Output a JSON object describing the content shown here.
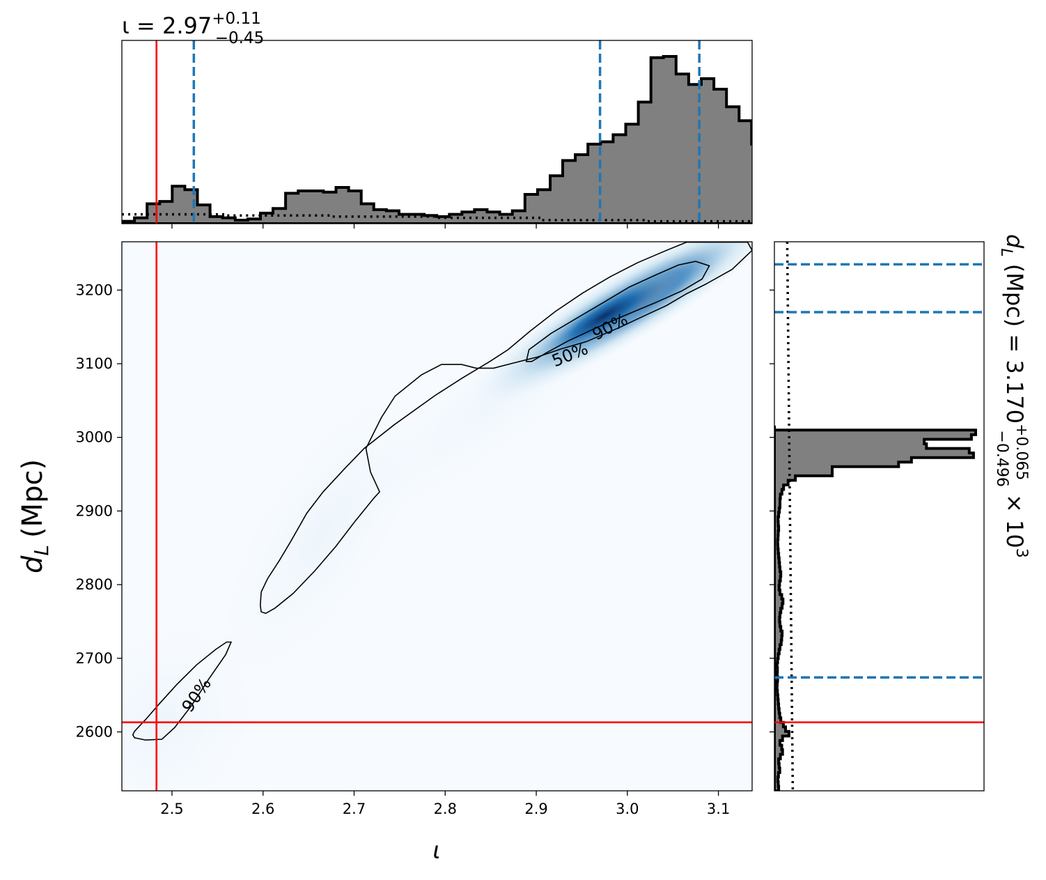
{
  "title": {
    "prefix": "ι = 2.97",
    "sup": "+0.11",
    "sub": "−0.45"
  },
  "side_label": {
    "prefix": "d",
    "sub_L": "L",
    "mid": " (Mpc) = 3.170",
    "sup": "+0.065",
    "sub": "−0.496",
    "suffix": " × 10",
    "exp": "3"
  },
  "chart_data": {
    "type": "heatmap",
    "xlabel": "ι",
    "ylabel_main": "d",
    "ylabel_sub": "L",
    "ylabel_unit": "(Mpc)",
    "xlim": [
      2.445,
      3.137
    ],
    "ylim": [
      2520,
      2265
    ],
    "xticks": [
      "2.5",
      "2.6",
      "2.7",
      "2.8",
      "2.9",
      "3.0",
      "3.1"
    ],
    "xtick_values": [
      2.5,
      2.6,
      2.7,
      2.8,
      2.9,
      3.0,
      3.1
    ],
    "yticks": [
      "2600",
      "2700",
      "2800",
      "2900",
      "3000",
      "3100",
      "3200"
    ],
    "ytick_values": [
      2600,
      2700,
      2800,
      2900,
      3000,
      3100,
      3200
    ],
    "injection": {
      "iota": 2.483,
      "dL": 2613
    },
    "colors": {
      "injection": "#ff0000",
      "quantile": "#1f77b4",
      "hist": "#808080",
      "contour": "#000000",
      "cmap_low": "#f7fbff",
      "cmap_high": "#08306b"
    },
    "contour_labels": [
      "90%",
      "50%",
      "90%"
    ],
    "iota_hist": {
      "edges_start": 2.445,
      "bin_width": 0.01383,
      "counts": [
        0.2,
        0.5,
        1.7,
        1.9,
        3.2,
        2.9,
        1.6,
        0.6,
        0.5,
        0.3,
        0.4,
        0.9,
        1.3,
        2.6,
        2.8,
        2.8,
        2.7,
        3.1,
        2.8,
        1.7,
        1.2,
        1.1,
        0.8,
        0.8,
        0.7,
        0.6,
        0.8,
        1.0,
        1.2,
        1.0,
        0.8,
        1.1,
        2.5,
        2.9,
        4.1,
        5.4,
        5.9,
        6.8,
        7.0,
        7.6,
        8.5,
        10.4,
        14.2,
        14.3,
        12.8,
        11.9,
        12.4,
        11.5,
        10.0,
        8.8,
        6.8,
        4.1,
        2.2,
        1.1,
        0.4
      ],
      "quantiles": [
        2.524,
        2.97,
        3.079
      ],
      "prior": [
        0.8,
        0.7,
        0.6,
        0.5,
        0.3,
        0.2
      ]
    },
    "dL_hist": {
      "edges_start": 2520,
      "bin_width": 6.2,
      "counts": [
        2.0,
        1.8,
        1.6,
        1.9,
        2.5,
        2.2,
        2.0,
        2.8,
        3.8,
        3.4,
        2.6,
        3.8,
        6.8,
        5.2,
        4.2,
        3.0,
        2.5,
        2.2,
        2.0,
        1.8,
        1.6,
        1.4,
        1.2,
        1.3,
        1.5,
        1.3,
        1.4,
        1.2,
        1.5,
        1.8,
        2.2,
        2.6,
        3.2,
        3.4,
        3.6,
        3.0,
        2.6,
        2.4,
        2.6,
        3.0,
        3.6,
        4.0,
        3.4,
        2.6,
        2.2,
        2.4,
        2.8,
        3.0,
        2.6,
        2.4,
        2.2,
        2.0,
        1.8,
        1.6,
        1.5,
        1.7,
        1.8,
        2.0,
        1.8,
        1.7,
        2.0,
        2.3,
        2.6,
        2.6,
        2.8,
        3.5,
        4.3,
        6.4,
        9.8,
        27.0,
        27.0,
        58.0,
        64.0,
        93.0,
        91.0,
        71.0,
        70.0,
        92.0,
        94.0,
        0
      ],
      "quantiles": [
        2674,
        3170,
        3235
      ],
      "prior": 6
    },
    "contours": {
      "c90_a": [
        [
          2.459,
          2601
        ],
        [
          2.472,
          2618
        ],
        [
          2.486,
          2638
        ],
        [
          2.505,
          2664
        ],
        [
          2.527,
          2691
        ],
        [
          2.548,
          2712
        ],
        [
          2.56,
          2722
        ],
        [
          2.565,
          2722
        ],
        [
          2.559,
          2705
        ],
        [
          2.54,
          2671
        ],
        [
          2.521,
          2635
        ],
        [
          2.503,
          2606
        ],
        [
          2.489,
          2590
        ],
        [
          2.471,
          2589
        ],
        [
          2.459,
          2592
        ],
        [
          2.457,
          2596
        ]
      ],
      "c90_b": [
        [
          2.598,
          2763
        ],
        [
          2.597,
          2772
        ],
        [
          2.598,
          2790
        ],
        [
          2.605,
          2808
        ],
        [
          2.618,
          2833
        ],
        [
          2.631,
          2860
        ],
        [
          2.648,
          2897
        ],
        [
          2.666,
          2926
        ],
        [
          2.69,
          2958
        ],
        [
          2.711,
          2985
        ],
        [
          2.744,
          3017
        ],
        [
          2.789,
          3057
        ],
        [
          2.818,
          3080
        ],
        [
          2.849,
          3103
        ],
        [
          2.869,
          3119
        ],
        [
          2.893,
          3144
        ],
        [
          2.921,
          3171
        ],
        [
          2.951,
          3196
        ],
        [
          2.981,
          3218
        ],
        [
          3.011,
          3237
        ],
        [
          3.043,
          3254
        ],
        [
          3.065,
          3265
        ],
        [
          3.132,
          3265
        ],
        [
          3.137,
          3254
        ],
        [
          3.115,
          3228
        ],
        [
          3.086,
          3208
        ],
        [
          3.065,
          3195
        ],
        [
          3.043,
          3179
        ],
        [
          3.022,
          3167
        ],
        [
          2.991,
          3149
        ],
        [
          2.955,
          3130
        ],
        [
          2.927,
          3120
        ],
        [
          2.901,
          3109
        ],
        [
          2.875,
          3101
        ],
        [
          2.853,
          3094
        ],
        [
          2.834,
          3094
        ],
        [
          2.818,
          3099
        ],
        [
          2.796,
          3099
        ],
        [
          2.774,
          3085
        ],
        [
          2.745,
          3056
        ],
        [
          2.73,
          3027
        ],
        [
          2.713,
          2985
        ],
        [
          2.718,
          2953
        ],
        [
          2.728,
          2926
        ],
        [
          2.722,
          2918
        ],
        [
          2.701,
          2886
        ],
        [
          2.68,
          2852
        ],
        [
          2.657,
          2819
        ],
        [
          2.633,
          2788
        ],
        [
          2.613,
          2768
        ],
        [
          2.603,
          2761
        ]
      ],
      "c50": [
        [
          2.889,
          3103
        ],
        [
          2.892,
          3119
        ],
        [
          2.916,
          3141
        ],
        [
          2.946,
          3163
        ],
        [
          2.975,
          3184
        ],
        [
          3.002,
          3204
        ],
        [
          3.032,
          3221
        ],
        [
          3.056,
          3234
        ],
        [
          3.075,
          3239
        ],
        [
          3.09,
          3233
        ],
        [
          3.082,
          3215
        ],
        [
          3.06,
          3199
        ],
        [
          3.031,
          3183
        ],
        [
          3.0,
          3167
        ],
        [
          2.968,
          3150
        ],
        [
          2.935,
          3131
        ],
        [
          2.91,
          3114
        ],
        [
          2.895,
          3103
        ]
      ]
    },
    "blob": [
      {
        "cx": 2.49,
        "cy": 2612,
        "sx": 0.055,
        "sy": 55,
        "rot": -55,
        "w": 0.05
      },
      {
        "cx": 2.665,
        "cy": 2870,
        "sx": 0.085,
        "sy": 40,
        "rot": -58,
        "w": 0.07
      },
      {
        "cx": 2.87,
        "cy": 3065,
        "sx": 0.11,
        "sy": 30,
        "rot": -38,
        "w": 0.05
      },
      {
        "cx": 3.0,
        "cy": 3178,
        "sx": 0.09,
        "sy": 22,
        "rot": -31,
        "w": 0.85
      },
      {
        "cx": 2.975,
        "cy": 3165,
        "sx": 0.05,
        "sy": 14,
        "rot": -31,
        "w": 1.0
      }
    ]
  }
}
